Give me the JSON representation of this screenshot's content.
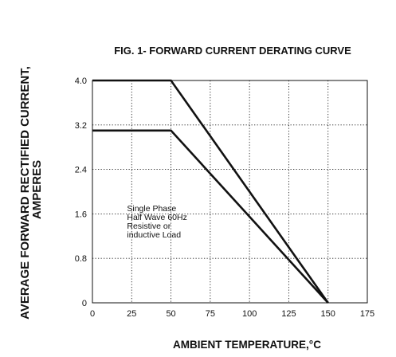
{
  "chart_data": {
    "type": "line",
    "title": "FIG. 1- FORWARD CURRENT DERATING CURVE",
    "xlabel": "AMBIENT TEMPERATURE,°C",
    "ylabel_lines": [
      "AVERAGE FORWARD RECTIFIED CURRENT,",
      "AMPERES"
    ],
    "xlim": [
      0,
      175
    ],
    "ylim": [
      0,
      4.0
    ],
    "x_ticks": [
      0,
      25,
      50,
      75,
      100,
      125,
      150,
      175
    ],
    "y_ticks": [
      0,
      0.8,
      1.6,
      2.4,
      3.2,
      4.0
    ],
    "y_tick_labels": [
      "0",
      "0.8",
      "1.6",
      "2.4",
      "3.2",
      "4.0"
    ],
    "grid": true,
    "series": [
      {
        "points": [
          [
            0,
            4.0
          ],
          [
            50,
            4.0
          ],
          [
            150,
            0
          ]
        ]
      },
      {
        "points": [
          [
            0,
            3.1
          ],
          [
            50,
            3.1
          ],
          [
            150,
            0
          ]
        ]
      }
    ],
    "annotation": {
      "lines": [
        "Single Phase",
        "Half Wave 60Hz",
        "Resistive or",
        "inductive Load"
      ],
      "x": 22,
      "y": 1.65
    }
  }
}
